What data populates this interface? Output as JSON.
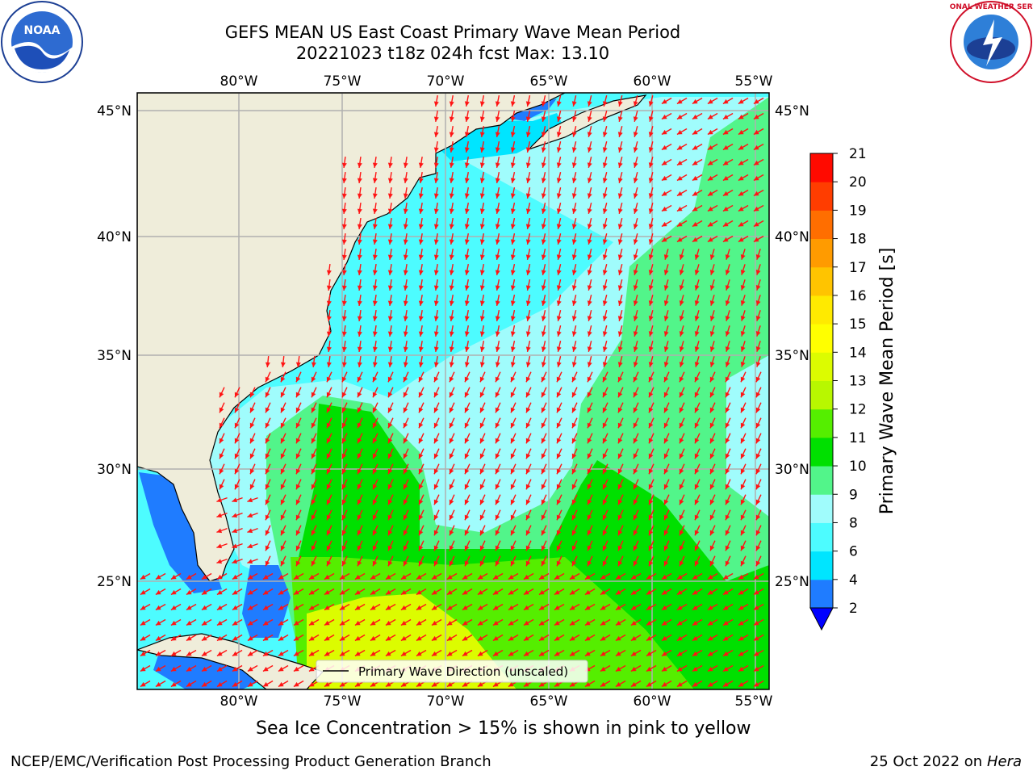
{
  "title": {
    "line1": "GEFS MEAN US East Coast Primary Wave Mean Period",
    "line2": "20221023 t18z 024h fcst   Max: 13.10"
  },
  "logos": {
    "left": {
      "icon": "noaa-logo",
      "text": "NOAA"
    },
    "right": {
      "icon": "nws-logo",
      "text": "NATIONAL WEATHER SERVICE"
    }
  },
  "map": {
    "lon_labels": [
      "80°W",
      "75°W",
      "70°W",
      "65°W",
      "60°W",
      "55°W"
    ],
    "lat_labels": [
      "45°N",
      "40°N",
      "35°N",
      "30°N",
      "25°N"
    ],
    "legend_label": "Primary Wave Direction (unscaled)",
    "colors": {
      "land": "#efedda",
      "arrow": "#ff1414",
      "grid": "#b0b0b0"
    }
  },
  "colorbar": {
    "label": "Primary Wave Mean Period [s]",
    "ticks": [
      "2",
      "4",
      "6",
      "8",
      "9",
      "10",
      "11",
      "12",
      "13",
      "14",
      "15",
      "16",
      "17",
      "18",
      "19",
      "20",
      "21"
    ],
    "colors": [
      "#1f7cff",
      "#00e5ff",
      "#4dfcff",
      "#a0fcfc",
      "#52f58a",
      "#00e000",
      "#55ee00",
      "#b8f700",
      "#dcfc00",
      "#ffff00",
      "#ffea00",
      "#ffc400",
      "#ff9b00",
      "#ff6e00",
      "#ff3d00",
      "#ff0a00"
    ],
    "under_color": "#0000ff"
  },
  "notes": {
    "sea_ice": "Sea Ice Concentration > 15% is shown in pink to yellow"
  },
  "footer": {
    "left": "NCEP/EMC/Verification Post Processing Product Generation Branch",
    "right_prefix": "25 Oct 2022 on ",
    "right_machine": "Hera"
  }
}
